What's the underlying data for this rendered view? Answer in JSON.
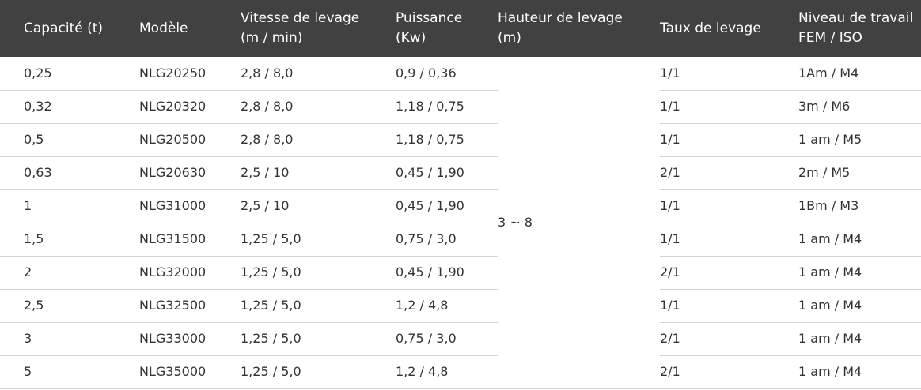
{
  "table": {
    "headers": [
      {
        "line1": "Capacité (t)",
        "line2": ""
      },
      {
        "line1": "Modèle",
        "line2": ""
      },
      {
        "line1": "Vitesse de levage",
        "line2": "(m / min)"
      },
      {
        "line1": "Puissance",
        "line2": "(Kw)"
      },
      {
        "line1": "Hauteur de levage",
        "line2": "(m)"
      },
      {
        "line1": "Taux de levage",
        "line2": ""
      },
      {
        "line1": "Niveau de travail",
        "line2": "FEM / ISO"
      }
    ],
    "hauteur_merged": "3 ~ 8",
    "rows": [
      {
        "capacite": "0,25",
        "modele": "NLG20250",
        "vitesse": "2,8 / 8,0",
        "puissance": "0,9 / 0,36",
        "taux": "1/1",
        "niveau": "1Am / M4"
      },
      {
        "capacite": "0,32",
        "modele": "NLG20320",
        "vitesse": "2,8 / 8,0",
        "puissance": "1,18 / 0,75",
        "taux": "1/1",
        "niveau": "3m / M6"
      },
      {
        "capacite": "0,5",
        "modele": "NLG20500",
        "vitesse": "2,8 / 8,0",
        "puissance": "1,18 / 0,75",
        "taux": "1/1",
        "niveau": "1 am / M5"
      },
      {
        "capacite": "0,63",
        "modele": "NLG20630",
        "vitesse": "2,5 / 10",
        "puissance": "0,45 / 1,90",
        "taux": "2/1",
        "niveau": "2m / M5"
      },
      {
        "capacite": "1",
        "modele": "NLG31000",
        "vitesse": "2,5 / 10",
        "puissance": "0,45 / 1,90",
        "taux": "1/1",
        "niveau": "1Bm / M3"
      },
      {
        "capacite": "1,5",
        "modele": "NLG31500",
        "vitesse": "1,25 / 5,0",
        "puissance": "0,75 / 3,0",
        "taux": "1/1",
        "niveau": "1 am / M4"
      },
      {
        "capacite": "2",
        "modele": "NLG32000",
        "vitesse": "1,25 / 5,0",
        "puissance": "0,45 / 1,90",
        "taux": "2/1",
        "niveau": "1 am / M4"
      },
      {
        "capacite": "2,5",
        "modele": "NLG32500",
        "vitesse": "1,25 / 5,0",
        "puissance": "1,2 / 4,8",
        "taux": "1/1",
        "niveau": "1 am / M4"
      },
      {
        "capacite": "3",
        "modele": "NLG33000",
        "vitesse": "1,25 / 5,0",
        "puissance": "0,75 / 3,0",
        "taux": "2/1",
        "niveau": "1 am / M4"
      },
      {
        "capacite": "5",
        "modele": "NLG35000",
        "vitesse": "1,25 / 5,0",
        "puissance": "1,2 / 4,8",
        "taux": "2/1",
        "niveau": "1 am / M4"
      }
    ]
  }
}
